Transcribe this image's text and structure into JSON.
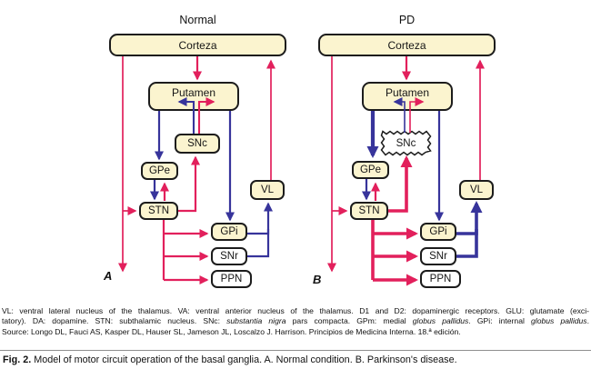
{
  "colors": {
    "excitatory_red": "#E2205C",
    "inhibitory_blue": "#37349B",
    "node_fill": "#FBF4CF",
    "node_border": "#1C1C1C",
    "caption_rule": "#8F8F8F"
  },
  "panels": [
    {
      "title": "Normal",
      "figure_label": "A",
      "nodes": {
        "cortex": "Corteza",
        "putamen": "Putamen",
        "snc": "SNc",
        "gpe": "GPe",
        "vl": "VL",
        "stn": "STN",
        "gpi": "GPi",
        "snr": "SNr",
        "ppn": "PPN"
      }
    },
    {
      "title": "PD",
      "figure_label": "B",
      "nodes": {
        "cortex": "Corteza",
        "putamen": "Putamen",
        "snc": "SNc",
        "gpe": "GPe",
        "vl": "VL",
        "stn": "STN",
        "gpi": "GPi",
        "snr": "SNr",
        "ppn": "PPN"
      }
    }
  ],
  "legend": {
    "line1": "VL: ventral lateral nucleus of the thalamus. VA: ventral anterior nucleus of the thalamus. D1 and D2: dopaminergic receptors. GLU: glutamate (exci-",
    "line2_parts": [
      "tatory). DA: dopamine. STN: subthalamic nucleus. SNc: ",
      "substantia nigra",
      " pars compacta. GPm: medial ",
      "globus pallidus",
      ". GPi: internal ",
      "globus pallidus",
      "."
    ],
    "line3": "Source: Longo DL, Fauci AS, Kasper DL, Hauser SL, Jameson JL, Loscalzo J. Harrison. Principios de Medicina Interna. 18.ª edición."
  },
  "caption": {
    "parts": [
      {
        "text": "Fig. 2.",
        "bold": true
      },
      {
        "text": " Model of motor circuit operation of the basal ganglia. A. Normal condition. B. Parkinson's disease.",
        "bold": false
      }
    ]
  }
}
